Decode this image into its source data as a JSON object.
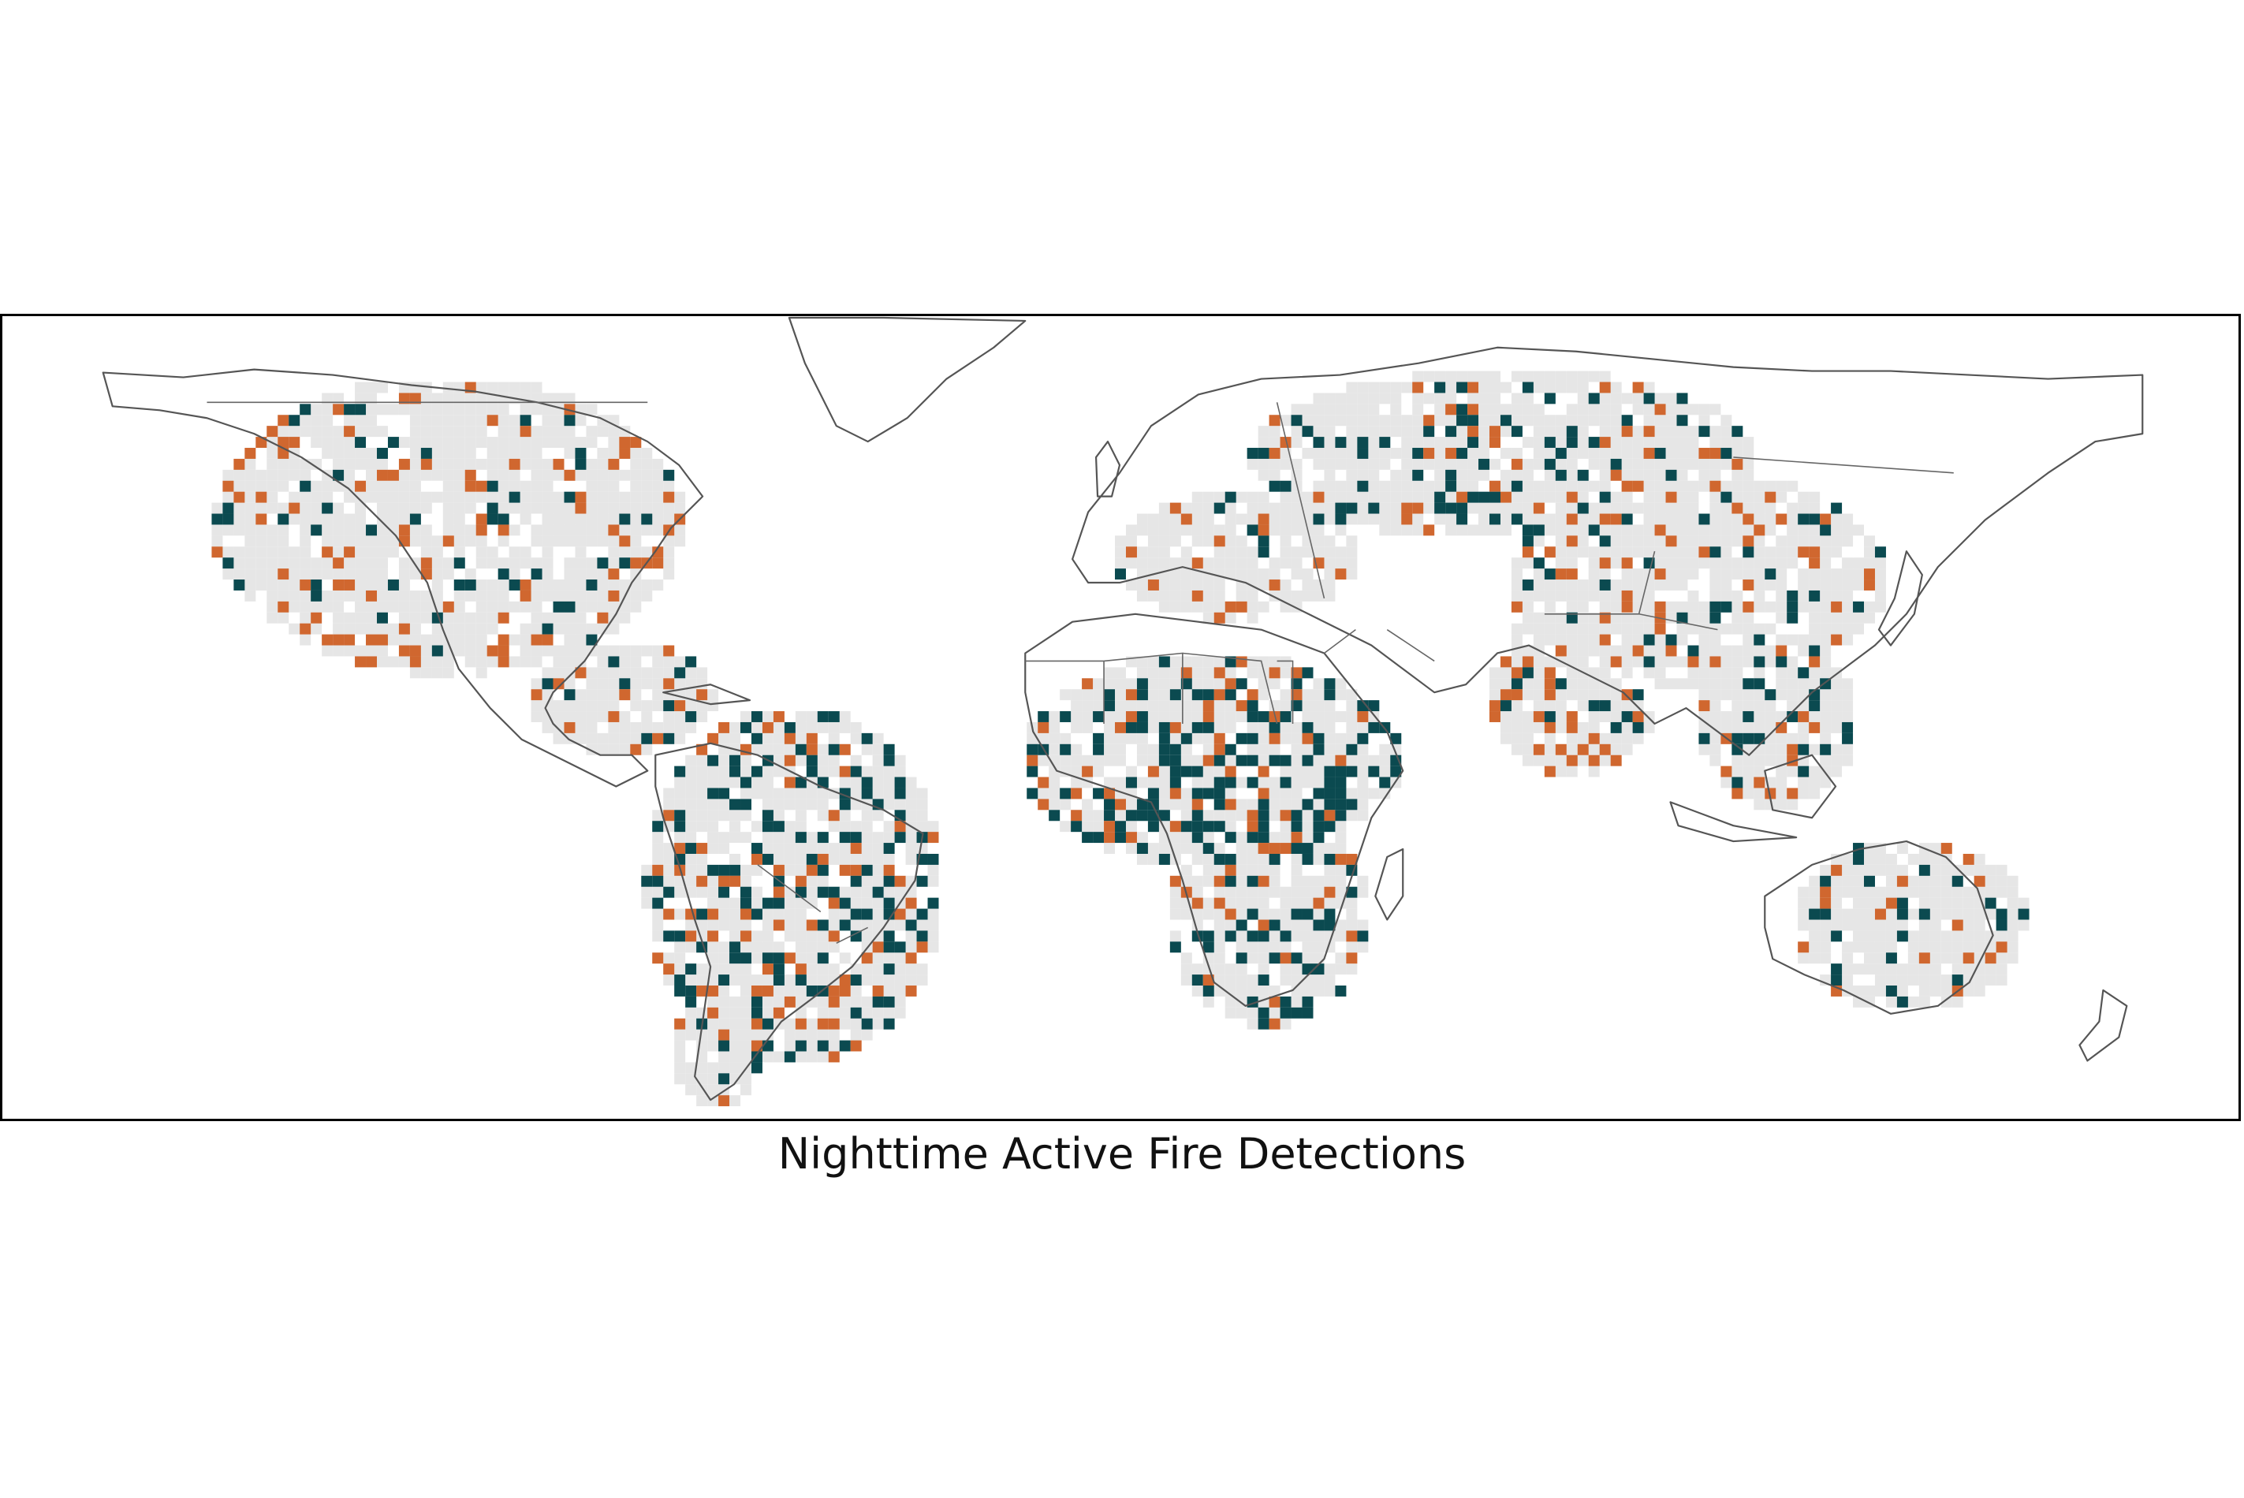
{
  "caption": "Nighttime Active Fire Detections",
  "colors": {
    "land": "#e6e6e6",
    "fire_class_a": "#0b4a50",
    "fire_class_b": "#d0672f",
    "coastline": "#555555",
    "frame": "#000000"
  }
}
